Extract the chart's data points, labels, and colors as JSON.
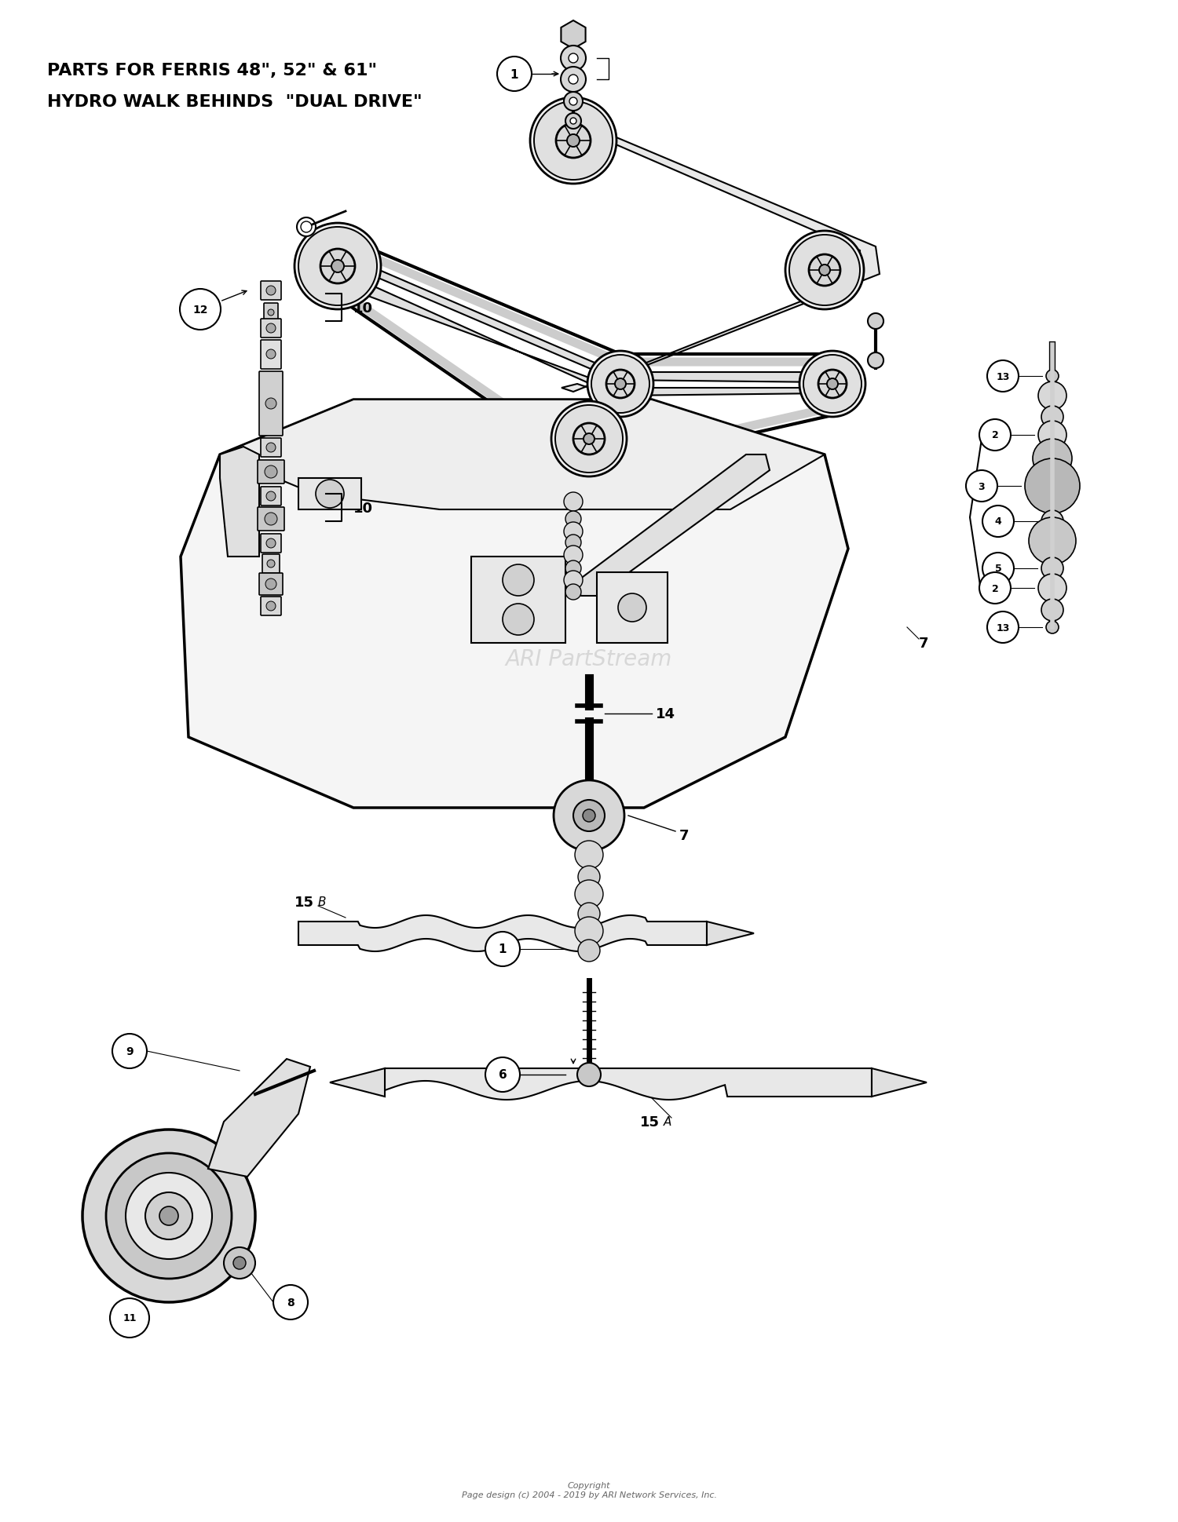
{
  "title_line1": "PARTS FOR FERRIS 48\", 52\" & 61\"",
  "title_line2": "HYDRO WALK BEHINDS  \"DUAL DRIVE\"",
  "copyright": "Copyright\nPage design (c) 2004 - 2019 by ARI Network Services, Inc.",
  "watermark": "ARI PartStream",
  "bg_color": "#ffffff",
  "fig_width": 15.0,
  "fig_height": 19.4,
  "dpi": 100
}
